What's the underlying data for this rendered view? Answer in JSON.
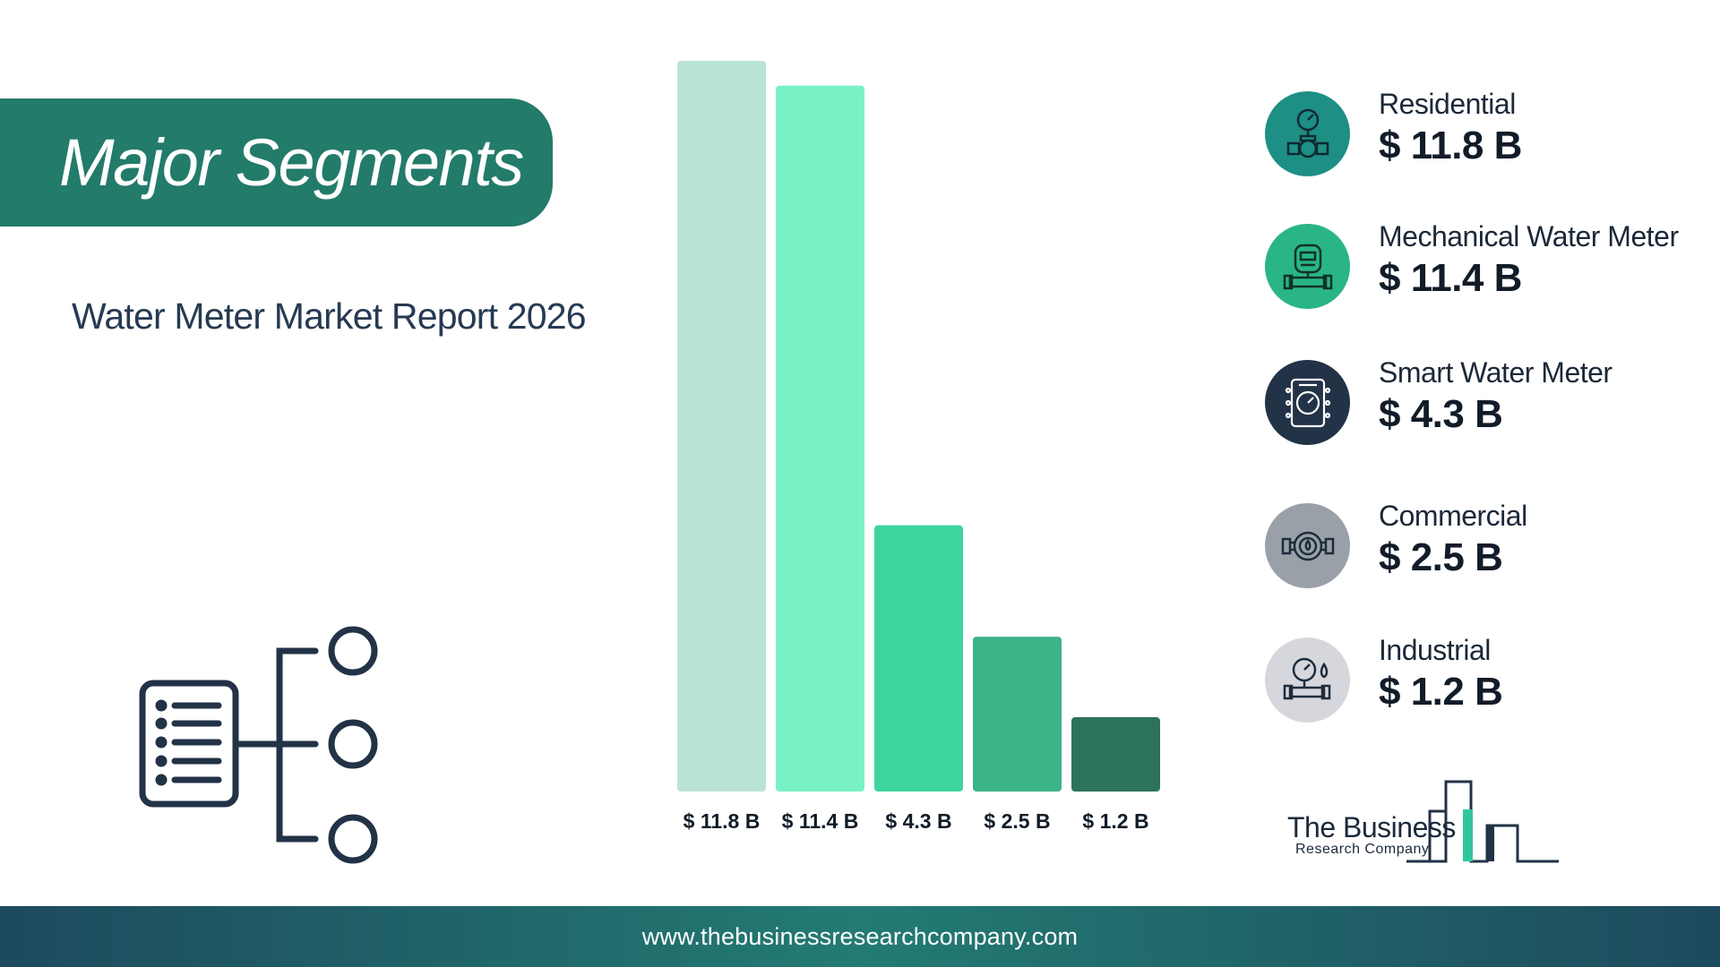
{
  "header": {
    "title": "Major Segments",
    "subtitle": "Water Meter Market Report 2026"
  },
  "chart_data": {
    "type": "bar",
    "categories": [
      "$ 11.8 B",
      "$ 11.4 B",
      "$ 4.3 B",
      "$ 2.5 B",
      "$ 1.2 B"
    ],
    "values": [
      11.8,
      11.4,
      4.3,
      2.5,
      1.2
    ],
    "unit": "$ B",
    "bar_colors": [
      "#b8e3d4",
      "#78f2c5",
      "#3dd59c",
      "#3db388",
      "#2d7359"
    ],
    "ylim": [
      0,
      11.8
    ],
    "grid": false
  },
  "legend": {
    "items": [
      {
        "label": "Residential",
        "value": "$ 11.8 B",
        "icon": "pressure-gauge-pipe-icon",
        "color": "#1e8f84"
      },
      {
        "label": "Mechanical Water Meter",
        "value": "$ 11.4 B",
        "icon": "mechanical-meter-icon",
        "color": "#2ab585"
      },
      {
        "label": "Smart Water Meter",
        "value": "$ 4.3 B",
        "icon": "smart-meter-icon",
        "color": "#223247"
      },
      {
        "label": "Commercial",
        "value": "$ 2.5 B",
        "icon": "water-meter-icon",
        "color": "#9aa0a8"
      },
      {
        "label": "Industrial",
        "value": "$ 1.2 B",
        "icon": "gauge-drop-icon",
        "color": "#d6d7dc"
      }
    ]
  },
  "logo": {
    "line1": "The Business",
    "line2": "Research Company"
  },
  "footer": {
    "url": "www.thebusinessresearchcompany.com"
  },
  "colors": {
    "primary": "#237b6a",
    "dark": "#223247",
    "footer_bg": "#1d4a5e"
  }
}
